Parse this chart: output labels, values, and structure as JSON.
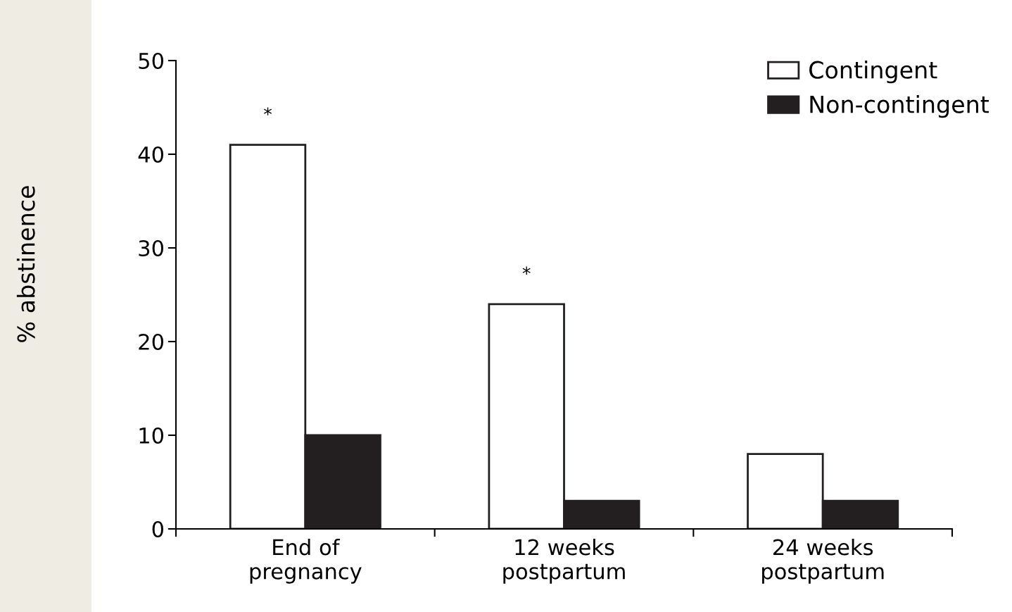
{
  "chart_data": {
    "type": "bar",
    "ylabel": "% abstinence",
    "categories": [
      "End of\npregnancy",
      "12 weeks\npostpartum",
      "24 weeks\npostpartum"
    ],
    "series": [
      {
        "name": "Contingent",
        "color": "#ffffff",
        "values": [
          41,
          24,
          8
        ]
      },
      {
        "name": "Non-contingent",
        "color": "#231f20",
        "values": [
          10,
          3,
          3
        ]
      }
    ],
    "ylim": [
      0,
      50
    ],
    "yticks": [
      0,
      10,
      20,
      30,
      40,
      50
    ],
    "grid": false,
    "legend": "top right",
    "annotations": [
      {
        "text": "*",
        "x": "End of\npregnancy",
        "y": 41
      },
      {
        "text": "*",
        "x": "12 weeks\npostpartum",
        "y": 24
      }
    ]
  }
}
